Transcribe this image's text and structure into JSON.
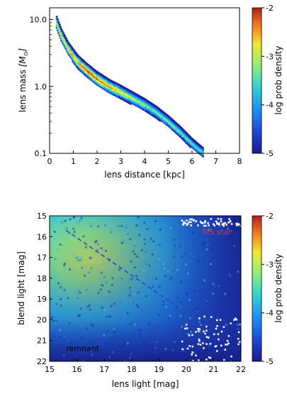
{
  "chart_data": [
    {
      "type": "heatmap",
      "xlabel": "lens distance [kpc]",
      "ylabel_main": "lens mass ",
      "ylabel_unit": "[M",
      "ylabel_unit_sub": "⊙",
      "ylabel_unit_end": "]",
      "xlim": [
        0,
        8
      ],
      "ylim": [
        0.1,
        15
      ],
      "yscale": "log",
      "xticks": [
        0,
        1,
        2,
        3,
        4,
        5,
        6,
        7,
        8
      ],
      "yticks": [
        {
          "value": 0.1,
          "label": "0.1"
        },
        {
          "value": 1.0,
          "label": "1.0"
        },
        {
          "value": 10.0,
          "label": "10.0"
        }
      ],
      "ridge": {
        "x": [
          0.3,
          0.5,
          0.8,
          1.2,
          1.6,
          2.0,
          2.5,
          3.0,
          3.5,
          4.0,
          4.5,
          5.0,
          5.5,
          6.0,
          6.5
        ],
        "mass": [
          9.0,
          5.8,
          3.6,
          2.3,
          1.7,
          1.3,
          1.0,
          0.82,
          0.66,
          0.53,
          0.41,
          0.3,
          0.21,
          0.14,
          0.1
        ]
      },
      "colorbar": {
        "label": "log prob density",
        "range": [
          -5,
          -2
        ],
        "ticks": [
          "-2",
          "-3",
          "-4",
          "-5"
        ]
      }
    },
    {
      "type": "heatmap",
      "xlabel": "lens light [mag]",
      "ylabel": "blend light [mag]",
      "xlim": [
        15,
        22
      ],
      "ylim": [
        22,
        15
      ],
      "xticks": [
        15,
        16,
        17,
        18,
        19,
        20,
        21,
        22
      ],
      "yticks": [
        15,
        16,
        17,
        18,
        19,
        20,
        21,
        22
      ],
      "annotations": [
        {
          "text": "MS star",
          "color": "#e8304a",
          "x": 20.6,
          "y": 15.9
        },
        {
          "text": "remnant",
          "color": "#000000",
          "x": 15.6,
          "y": 21.5
        }
      ],
      "guide_line": {
        "x": [
          15.6,
          19.6
        ],
        "y": [
          15.7,
          19.3
        ],
        "style": "dashed"
      },
      "colorbar": {
        "label": "log prob density",
        "range": [
          -5,
          -2
        ],
        "ticks": [
          "-2",
          "-3",
          "-4",
          "-5"
        ]
      }
    }
  ]
}
